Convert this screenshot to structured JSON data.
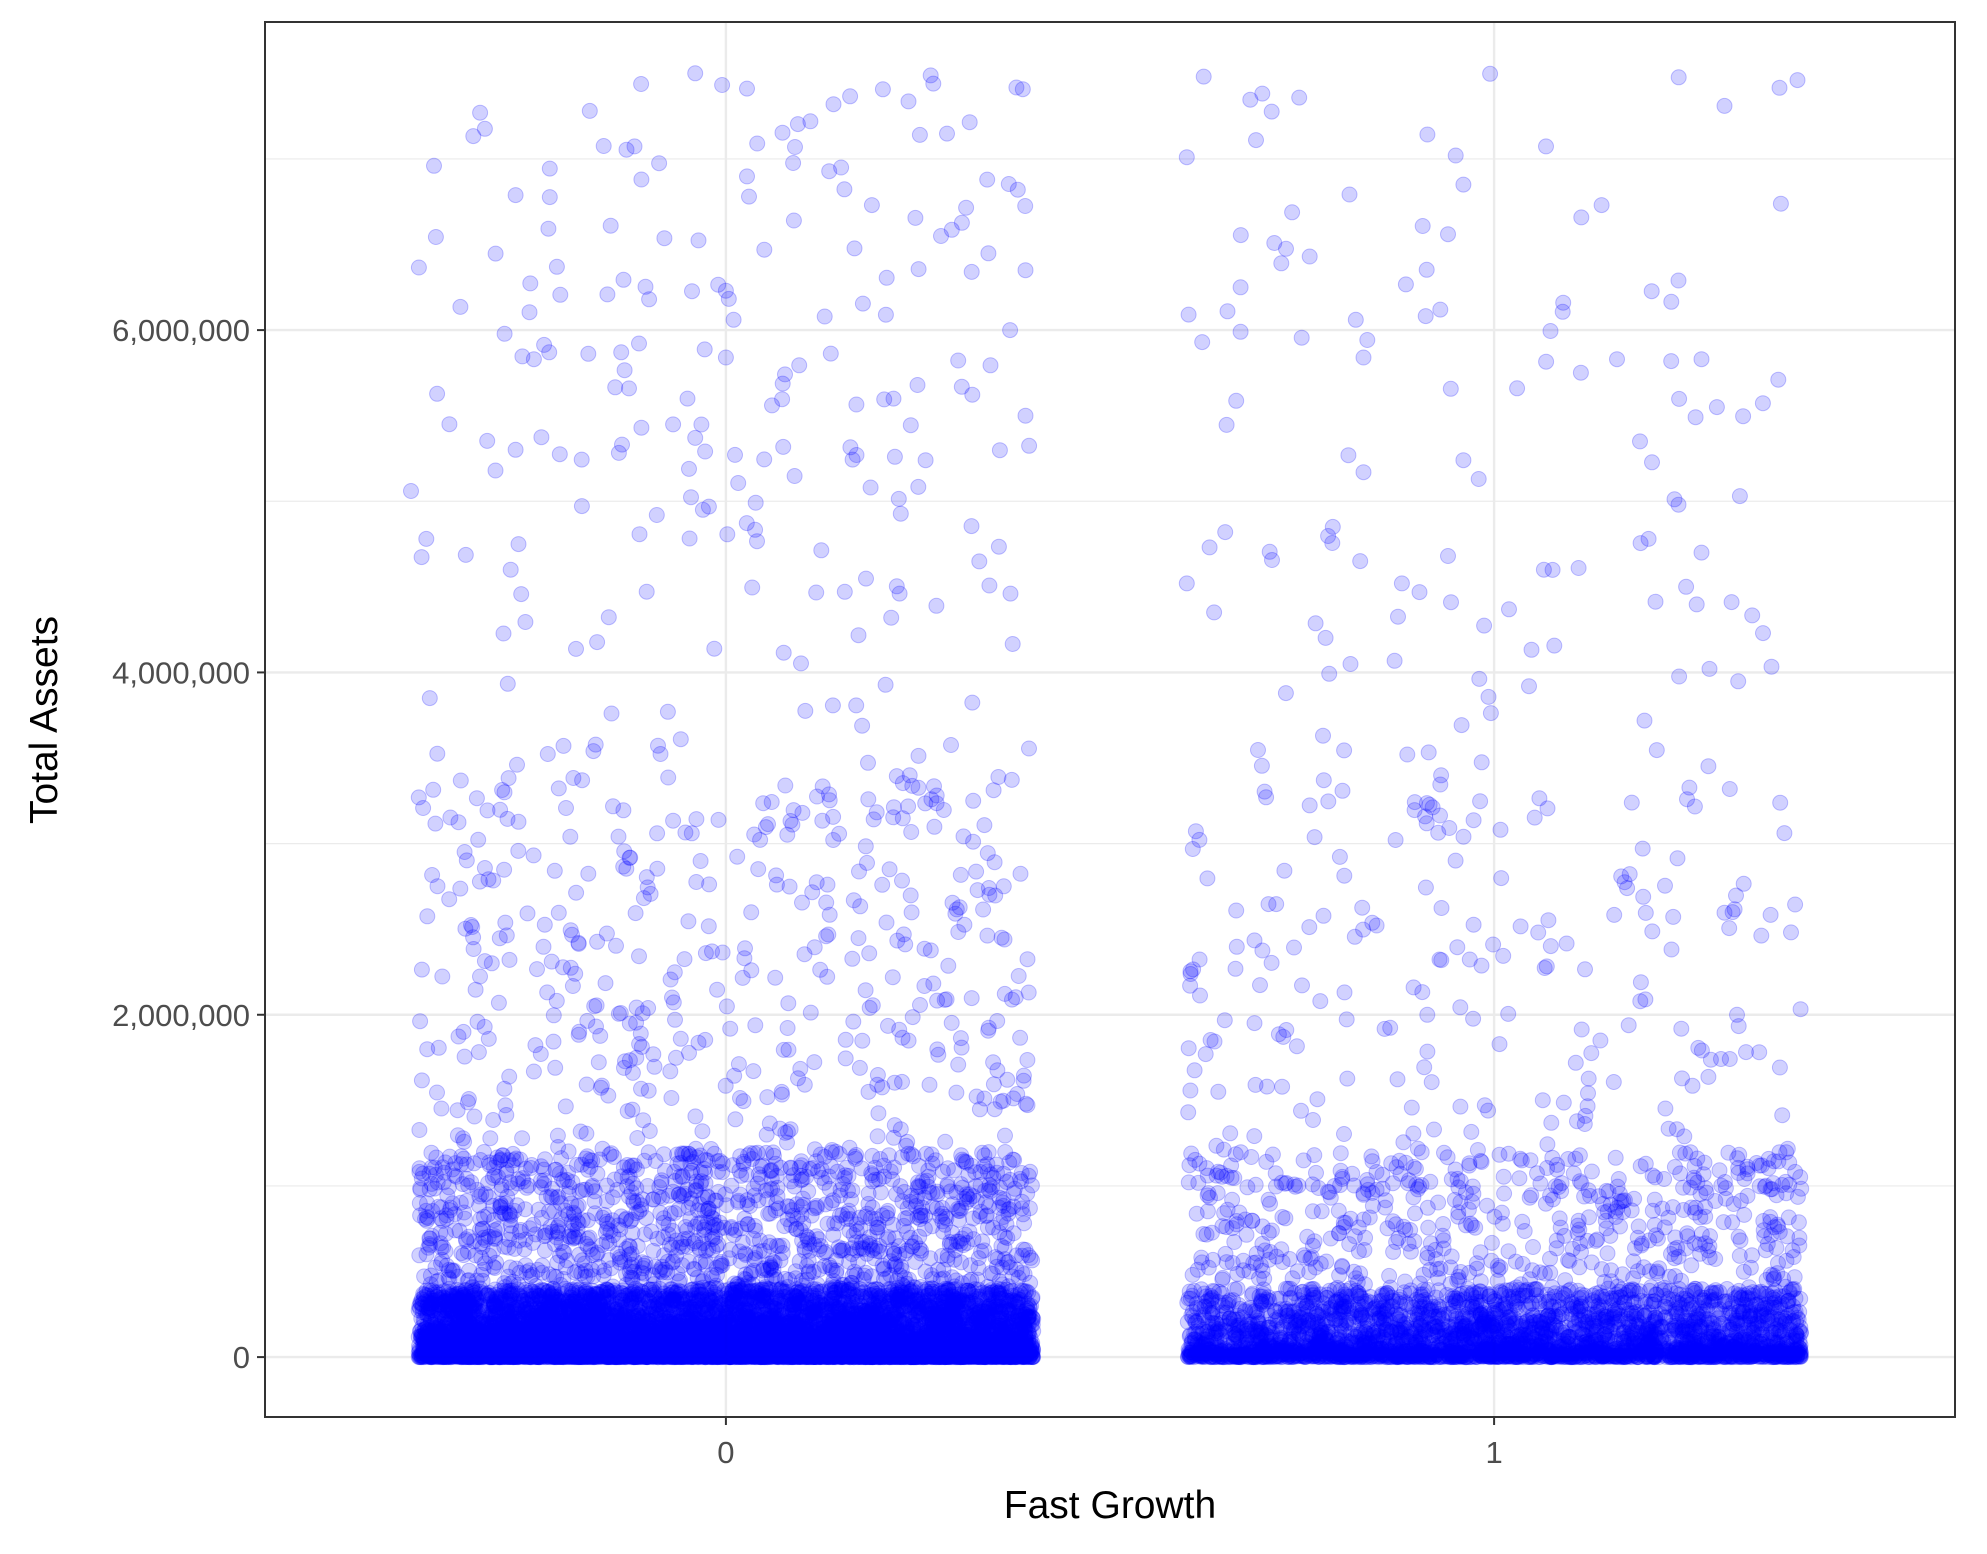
{
  "chart_data": {
    "type": "scatter",
    "title": "",
    "xlabel": "Fast Growth",
    "ylabel": "Total Assets",
    "x_categories": [
      "0",
      "1"
    ],
    "y_ticks": [
      0,
      2000000,
      4000000,
      6000000
    ],
    "y_tick_labels": [
      "0",
      "2,000,000",
      "4,000,000",
      "6,000,000"
    ],
    "ylim": [
      -350000,
      7800000
    ],
    "jitter_width": 0.4,
    "point_color": "#0000ff",
    "point_alpha": 0.18,
    "grid": true,
    "legend": "none",
    "groups": [
      {
        "category": "0",
        "approx_points": 9000,
        "sample_outliers": [
          [
            -0.04,
            7500000
          ],
          [
            0.27,
            7440000
          ],
          [
            -0.32,
            7270000
          ],
          [
            0.14,
            7320000
          ],
          [
            0.11,
            7220000
          ],
          [
            0.09,
            7070000
          ],
          [
            -0.38,
            6960000
          ],
          [
            0.15,
            6950000
          ],
          [
            0.03,
            6780000
          ],
          [
            0.19,
            6730000
          ],
          [
            -0.11,
            6880000
          ],
          [
            0.28,
            6550000
          ],
          [
            -0.15,
            6610000
          ],
          [
            0.05,
            6470000
          ],
          [
            -0.22,
            6370000
          ],
          [
            0.32,
            6340000
          ],
          [
            0.39,
            6350000
          ],
          [
            0.38,
            6820000
          ],
          [
            0.0,
            6230000
          ],
          [
            -0.1,
            6180000
          ],
          [
            0.01,
            6060000
          ],
          [
            0.37,
            6000000
          ],
          [
            -0.23,
            5870000
          ],
          [
            -0.25,
            5830000
          ],
          [
            -0.05,
            5600000
          ],
          [
            0.0,
            5840000
          ],
          [
            0.39,
            5500000
          ],
          [
            -0.36,
            5450000
          ],
          [
            -0.39,
            4780000
          ],
          [
            -0.41,
            5060000
          ],
          [
            -0.3,
            5180000
          ],
          [
            -0.04,
            5370000
          ],
          [
            0.17,
            5270000
          ],
          [
            0.22,
            5260000
          ],
          [
            0.26,
            5240000
          ],
          [
            0.06,
            5560000
          ],
          [
            -0.11,
            5430000
          ],
          [
            -0.09,
            4920000
          ],
          [
            -0.03,
            4950000
          ],
          [
            -0.27,
            4750000
          ]
        ]
      },
      {
        "category": "1",
        "approx_points": 4000,
        "sample_outliers": [
          [
            0.6,
            7010000
          ],
          [
            0.69,
            7110000
          ],
          [
            0.95,
            7020000
          ],
          [
            1.3,
            7310000
          ],
          [
            0.96,
            6850000
          ],
          [
            1.14,
            6730000
          ],
          [
            0.94,
            6560000
          ],
          [
            0.76,
            6430000
          ],
          [
            0.67,
            6250000
          ],
          [
            1.24,
            6290000
          ],
          [
            0.93,
            6120000
          ],
          [
            1.09,
            6160000
          ],
          [
            0.82,
            6060000
          ],
          [
            0.62,
            5930000
          ],
          [
            0.67,
            5990000
          ],
          [
            1.03,
            5660000
          ],
          [
            1.16,
            5830000
          ],
          [
            1.27,
            5830000
          ],
          [
            1.37,
            5710000
          ],
          [
            1.29,
            5550000
          ],
          [
            1.19,
            5350000
          ],
          [
            0.96,
            5240000
          ],
          [
            0.98,
            5130000
          ],
          [
            0.83,
            5840000
          ],
          [
            0.83,
            5170000
          ],
          [
            1.32,
            5030000
          ],
          [
            1.24,
            4980000
          ],
          [
            1.27,
            4700000
          ],
          [
            0.65,
            4820000
          ],
          [
            0.79,
            4850000
          ],
          [
            1.11,
            4610000
          ],
          [
            0.6,
            4520000
          ],
          [
            0.88,
            4520000
          ],
          [
            1.25,
            4500000
          ],
          [
            0.94,
            4680000
          ],
          [
            1.35,
            4230000
          ]
        ]
      }
    ]
  }
}
